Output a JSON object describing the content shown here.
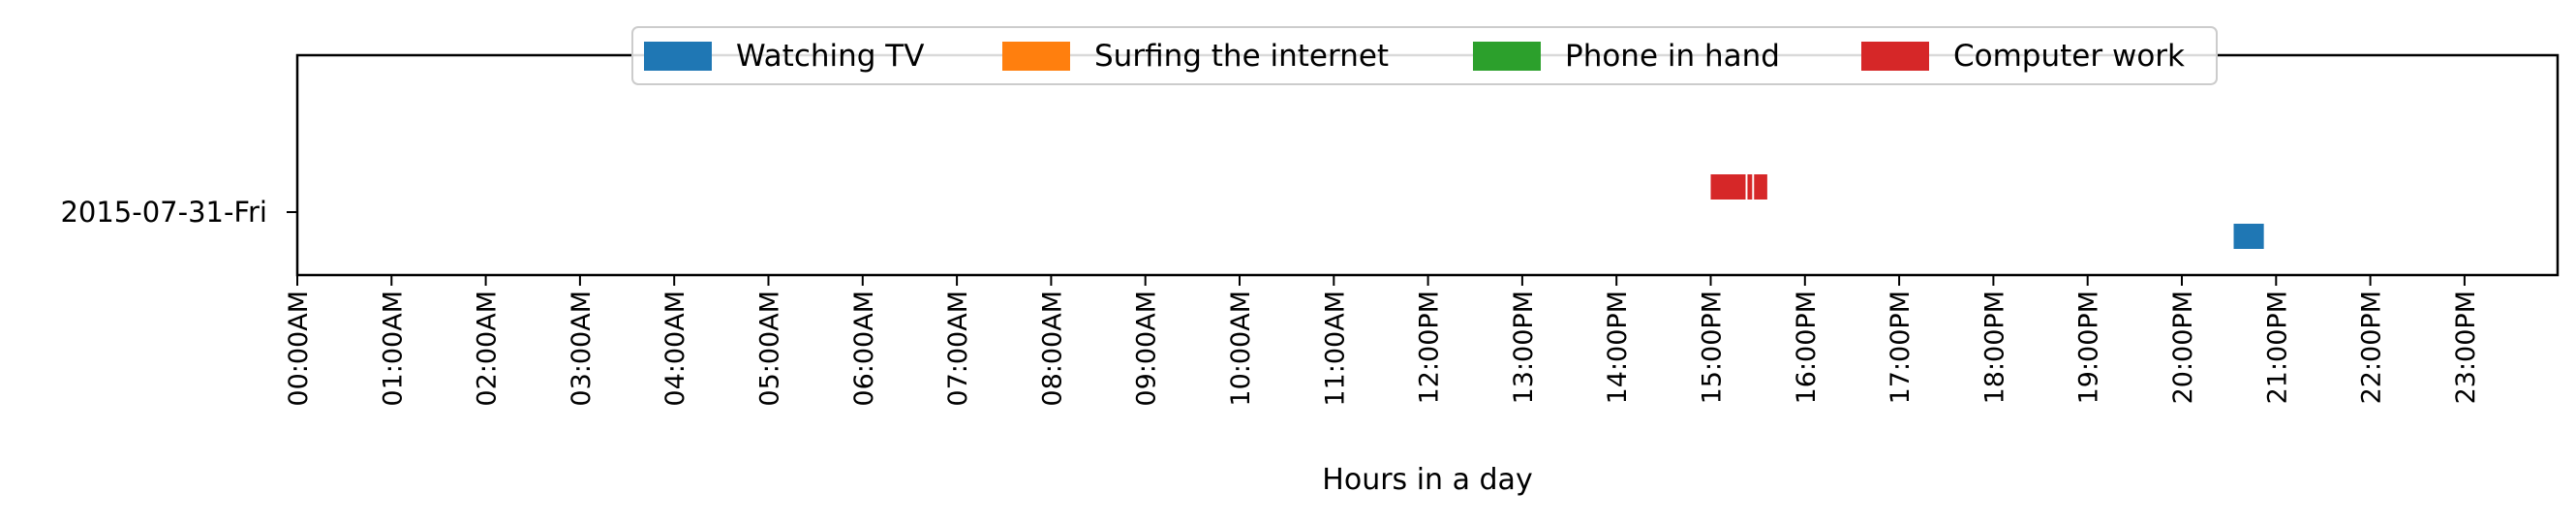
{
  "chart_data": {
    "type": "timeline",
    "xlabel": "Hours in a day",
    "xlim": [
      0,
      24
    ],
    "x_ticks": [
      "00:00AM",
      "01:00AM",
      "02:00AM",
      "03:00AM",
      "04:00AM",
      "05:00AM",
      "06:00AM",
      "07:00AM",
      "08:00AM",
      "09:00AM",
      "10:00AM",
      "11:00AM",
      "12:00PM",
      "13:00PM",
      "14:00PM",
      "15:00PM",
      "16:00PM",
      "17:00PM",
      "18:00PM",
      "19:00PM",
      "20:00PM",
      "21:00PM",
      "22:00PM",
      "23:00PM"
    ],
    "y_categories": [
      "2015-07-31-Fri"
    ],
    "grid": false,
    "legend_position": "top-center",
    "series": [
      {
        "name": "Watching TV",
        "color": "#1f77b4",
        "intervals": [
          [
            20.55,
            20.87
          ]
        ]
      },
      {
        "name": "Surfing the internet",
        "color": "#ff7f0e",
        "intervals": []
      },
      {
        "name": "Phone in hand",
        "color": "#2ca02c",
        "intervals": []
      },
      {
        "name": "Computer work",
        "color": "#d62728",
        "intervals": [
          [
            15.0,
            15.37
          ],
          [
            15.39,
            15.44
          ],
          [
            15.46,
            15.6
          ]
        ]
      }
    ]
  }
}
